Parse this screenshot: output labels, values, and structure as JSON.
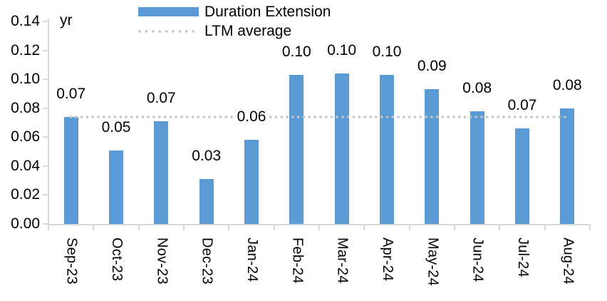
{
  "chart_data": {
    "type": "bar",
    "title": "",
    "unit": "yr",
    "categories": [
      "Sep-23",
      "Oct-23",
      "Nov-23",
      "Dec-23",
      "Jan-24",
      "Feb-24",
      "Mar-24",
      "Apr-24",
      "May-24",
      "Jun-24",
      "Jul-24",
      "Aug-24"
    ],
    "series": [
      {
        "name": "Duration Extension",
        "values": [
          0.074,
          0.051,
          0.071,
          0.031,
          0.058,
          0.103,
          0.104,
          0.103,
          0.093,
          0.078,
          0.066,
          0.08
        ],
        "data_labels": [
          "0.07",
          "0.05",
          "0.07",
          "0.03",
          "0.06",
          "0.10",
          "0.10",
          "0.10",
          "0.09",
          "0.08",
          "0.07",
          "0.08"
        ]
      }
    ],
    "reference_line": {
      "name": "LTM average",
      "value": 0.074,
      "style": "dotted"
    },
    "ylim": [
      0,
      0.14
    ],
    "ytick_step": 0.02,
    "ytick_labels": [
      "0.00",
      "0.02",
      "0.04",
      "0.06",
      "0.08",
      "0.10",
      "0.12",
      "0.14"
    ],
    "grid": false,
    "legend_position": "top-left",
    "legend": [
      "Duration Extension",
      "LTM average"
    ]
  },
  "colors": {
    "bar": "#5B9BD5",
    "reference_line": "#C5C5C5",
    "axis": "#D9D9D9",
    "text": "#000000",
    "background": "#FFFFFF"
  }
}
